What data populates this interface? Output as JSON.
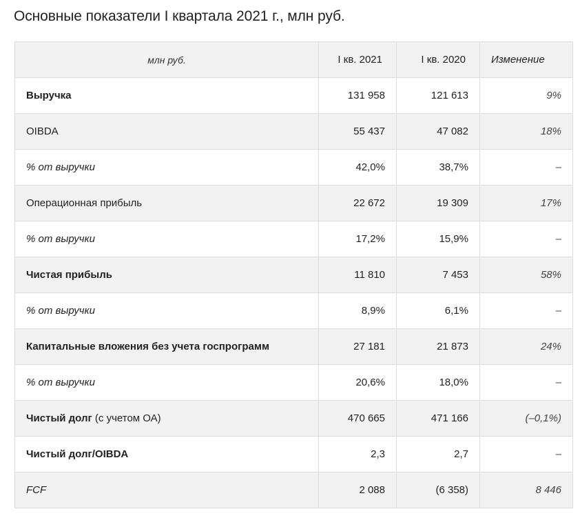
{
  "page": {
    "title": "Основные показатели I квартала 2021 г., млн руб."
  },
  "table": {
    "header": {
      "label": "млн руб.",
      "col_2021": "I кв. 2021",
      "col_2020": "I кв. 2020",
      "col_change": "Изменение"
    },
    "rows": [
      {
        "label": "Выручка",
        "note": "",
        "v2021": "131 958",
        "v2020": "121 613",
        "change": "9%",
        "style": "bold"
      },
      {
        "label": "OIBDA",
        "note": "",
        "v2021": "55 437",
        "v2020": "47 082",
        "change": "18%",
        "style": "normal"
      },
      {
        "label": "% от выручки",
        "note": "",
        "v2021": "42,0%",
        "v2020": "38,7%",
        "change": "–",
        "style": "italic"
      },
      {
        "label": "Операционная прибыль",
        "note": "",
        "v2021": "22 672",
        "v2020": "19 309",
        "change": "17%",
        "style": "normal"
      },
      {
        "label": "% от выручки",
        "note": "",
        "v2021": "17,2%",
        "v2020": "15,9%",
        "change": "–",
        "style": "italic"
      },
      {
        "label": "Чистая прибыль",
        "note": "",
        "v2021": "11 810",
        "v2020": "7 453",
        "change": "58%",
        "style": "bold"
      },
      {
        "label": "% от выручки",
        "note": "",
        "v2021": "8,9%",
        "v2020": "6,1%",
        "change": "–",
        "style": "italic"
      },
      {
        "label": "Капитальные вложения без учета госпрограмм",
        "note": "",
        "v2021": "27 181",
        "v2020": "21 873",
        "change": "24%",
        "style": "bold"
      },
      {
        "label": "% от выручки",
        "note": "",
        "v2021": "20,6%",
        "v2020": "18,0%",
        "change": "–",
        "style": "italic"
      },
      {
        "label": "Чистый долг",
        "note": " (с учетом ОА)",
        "v2021": "470 665",
        "v2020": "471 166",
        "change": "(–0,1%)",
        "style": "bold"
      },
      {
        "label": "Чистый долг/OIBDA",
        "note": "",
        "v2021": "2,3",
        "v2020": "2,7",
        "change": "–",
        "style": "bold"
      },
      {
        "label": "FCF",
        "note": "",
        "v2021": "2 088",
        "v2020": "(6 358)",
        "change": "8 446",
        "style": "italic"
      }
    ]
  }
}
